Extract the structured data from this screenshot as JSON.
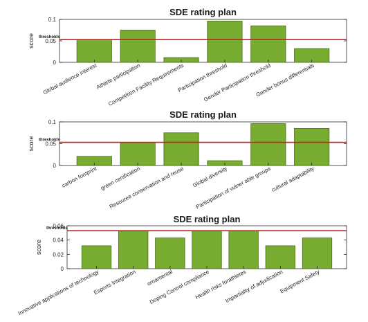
{
  "chart_data": [
    {
      "type": "bar",
      "title": "SDE rating plan",
      "ylabel": "score",
      "ylim": [
        0,
        0.1
      ],
      "yticks": [
        0,
        0.05,
        0.1
      ],
      "ytick_labels": [
        "0",
        "0.05",
        "0.1"
      ],
      "threshold": 0.053,
      "threshold_label": "thresholds",
      "threshold_color": "#d41c1c",
      "bar_color": "#77AC30",
      "categories": [
        "Global audience interest",
        "Athlete participation",
        "Competition Facility Requirements",
        "Participation threshold",
        "Gender Participation threshold",
        "Gender bonus differentials"
      ],
      "values": [
        0.053,
        0.075,
        0.011,
        0.096,
        0.085,
        0.032
      ]
    },
    {
      "type": "bar",
      "title": "SDE rating plan",
      "ylabel": "score",
      "ylim": [
        0,
        0.1
      ],
      "yticks": [
        0,
        0.05,
        0.1
      ],
      "ytick_labels": [
        "0",
        "0.05",
        "0.1"
      ],
      "threshold": 0.053,
      "threshold_label": "thresholds",
      "threshold_color": "#d41c1c",
      "bar_color": "#77AC30",
      "categories": [
        "carbon footprint",
        "green certification",
        "Resouree conservation and reuse",
        "Global diversity",
        "Participation of vulner able groups",
        "cultural adaptability"
      ],
      "values": [
        0.021,
        0.053,
        0.075,
        0.011,
        0.096,
        0.085
      ]
    },
    {
      "type": "bar",
      "title": "SDE rating plan",
      "ylabel": "score",
      "ylim": [
        0,
        0.06
      ],
      "yticks": [
        0,
        0.02,
        0.04,
        0.06
      ],
      "ytick_labels": [
        "0",
        "0.02",
        "0.04",
        "0.06"
      ],
      "threshold": 0.053,
      "threshold_label": "thresholds",
      "threshold_color": "#d41c1c",
      "bar_color": "#77AC30",
      "categories": [
        "Innovative applications of technology",
        "Esports Integration",
        "ornamental",
        "Doping Control compliance",
        "Health risks forathletes",
        "Impartiality of adjudication",
        "Equipment Safety"
      ],
      "values": [
        0.032,
        0.053,
        0.043,
        0.053,
        0.053,
        0.032,
        0.043
      ]
    }
  ]
}
